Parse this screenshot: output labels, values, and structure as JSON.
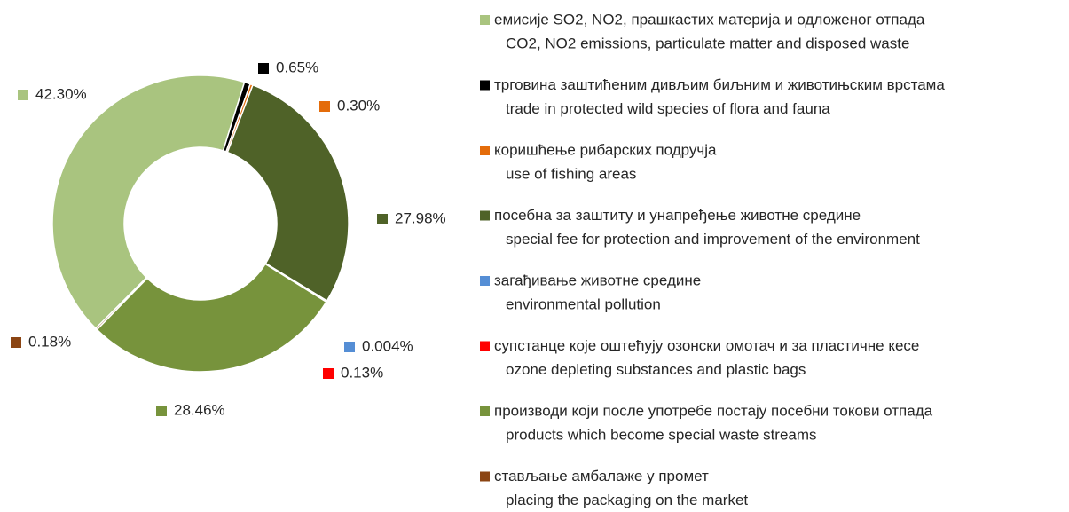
{
  "chart_data": {
    "type": "donut",
    "categories": [
      "емисије SO2, NO2, прашкастих материја и одложеног отпада",
      "трговина заштићеним дивљим биљним и животињским врстама",
      "коришћење рибарских подручја",
      "посебна за заштиту и унапређење животне средине",
      "загађивање животне средине",
      "супстанце које оштећују озонски омотач и за пластичне кесе",
      "производи који после употребе постају посебни токови отпада",
      "стављање амбалаже у промет"
    ],
    "categories_en": [
      "CO2, NO2 emissions, particulate matter and disposed waste",
      "trade in protected wild species of flora and fauna",
      "use of fishing areas",
      "special fee for protection and improvement of the environment",
      "environmental pollution",
      "ozone depleting substances and plastic bags",
      "products which become special waste streams",
      "placing the packaging on the market"
    ],
    "values": [
      42.3,
      0.65,
      0.3,
      27.98,
      0.004,
      0.13,
      28.46,
      0.18
    ],
    "value_labels": [
      "42.30%",
      "0.65%",
      "0.30%",
      "27.98%",
      "0.004%",
      "0.13%",
      "28.46%",
      "0.18%"
    ],
    "colors": [
      "#a9c47f",
      "#000000",
      "#e46c0a",
      "#4f6228",
      "#558ed5",
      "#ff0000",
      "#77933c",
      "#8b4513"
    ]
  }
}
